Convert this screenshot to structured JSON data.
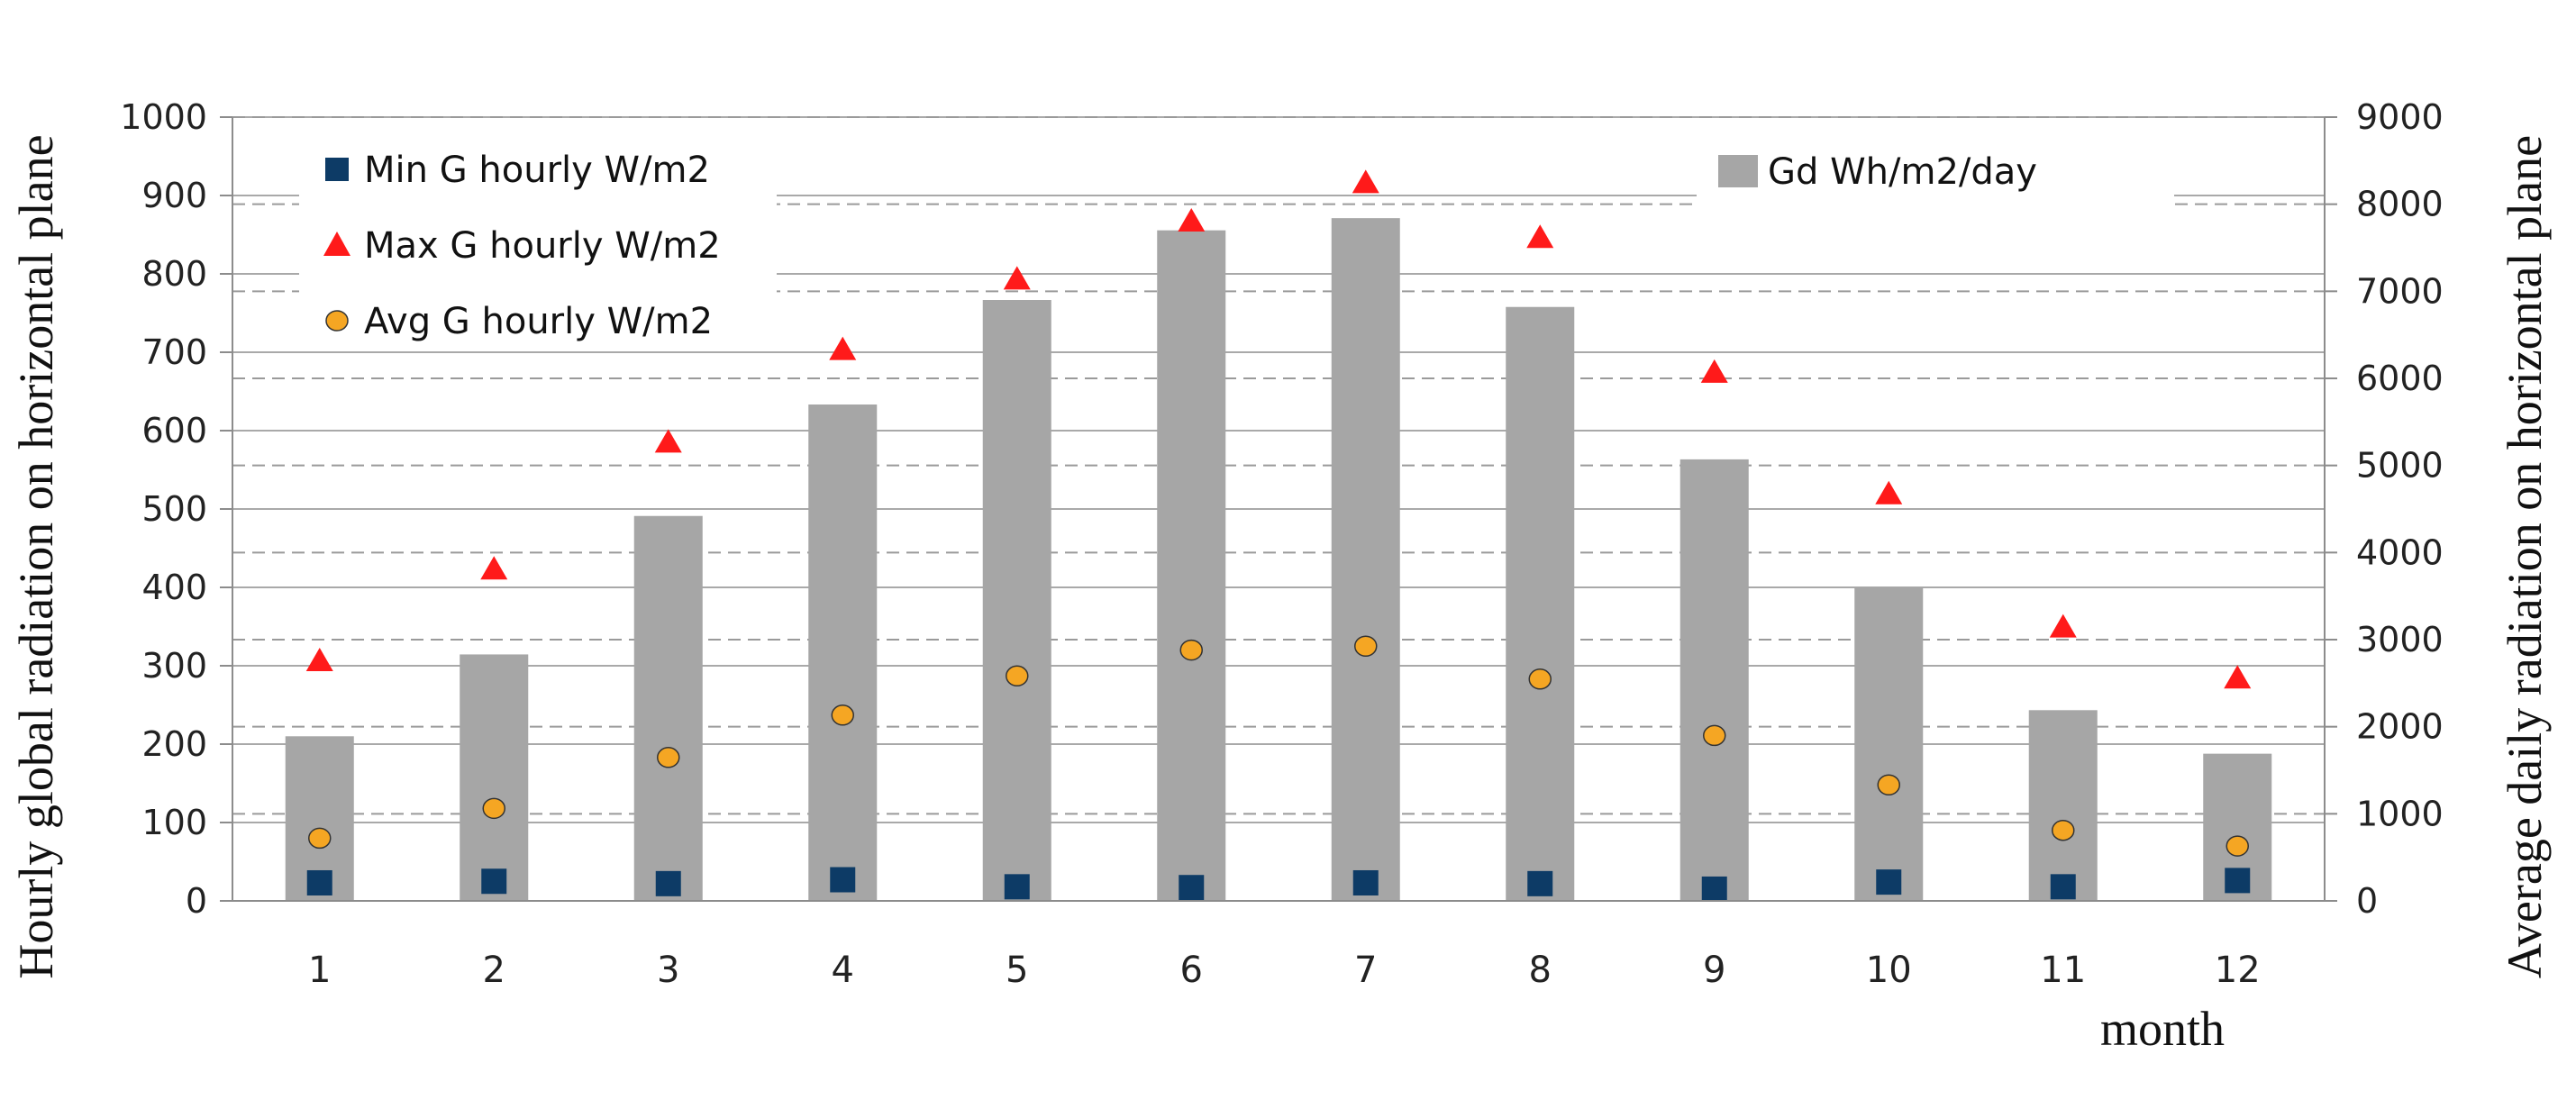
{
  "chart_data": {
    "type": "bar",
    "x": [
      1,
      2,
      3,
      4,
      5,
      6,
      7,
      8,
      9,
      10,
      11,
      12
    ],
    "xlabel": "month",
    "ylabel_left": "Hourly global radiation on horizontal plane",
    "ylabel_right": "Average daily radiation on horizontal plane",
    "ylim_left": [
      0,
      1000
    ],
    "ylim_right": [
      0,
      9000
    ],
    "yticks_left": [
      0,
      100,
      200,
      300,
      400,
      500,
      600,
      700,
      800,
      900,
      1000
    ],
    "yticks_right": [
      0,
      1000,
      2000,
      3000,
      4000,
      5000,
      6000,
      7000,
      8000,
      9000
    ],
    "grid": true,
    "series": [
      {
        "name": "Gd Wh/m2/day",
        "kind": "bar",
        "axis": "right",
        "color": "#a6a6a6",
        "values": [
          1890,
          2830,
          4420,
          5700,
          6900,
          7700,
          7840,
          6820,
          5070,
          3600,
          2190,
          1690
        ]
      },
      {
        "name": "Min G hourly W/m2",
        "kind": "square",
        "axis": "left",
        "color": "#0d3b66",
        "values": [
          23,
          25,
          22,
          27,
          18,
          17,
          23,
          22,
          15,
          24,
          18,
          26
        ]
      },
      {
        "name": "Max G hourly W/m2",
        "kind": "triangle",
        "axis": "left",
        "color": "#ff1a1a",
        "values": [
          305,
          422,
          584,
          702,
          792,
          866,
          915,
          845,
          673,
          518,
          348,
          283
        ]
      },
      {
        "name": "Avg G hourly W/m2",
        "kind": "circle",
        "axis": "left",
        "color": "#f5a623",
        "values": [
          80,
          118,
          183,
          237,
          287,
          320,
          325,
          283,
          211,
          148,
          90,
          70
        ]
      }
    ],
    "legend": {
      "left_entries": [
        "Min G hourly W/m2",
        "Max G hourly W/m2",
        "Avg G hourly W/m2"
      ],
      "right_entries": [
        "Gd Wh/m2/day"
      ]
    }
  }
}
